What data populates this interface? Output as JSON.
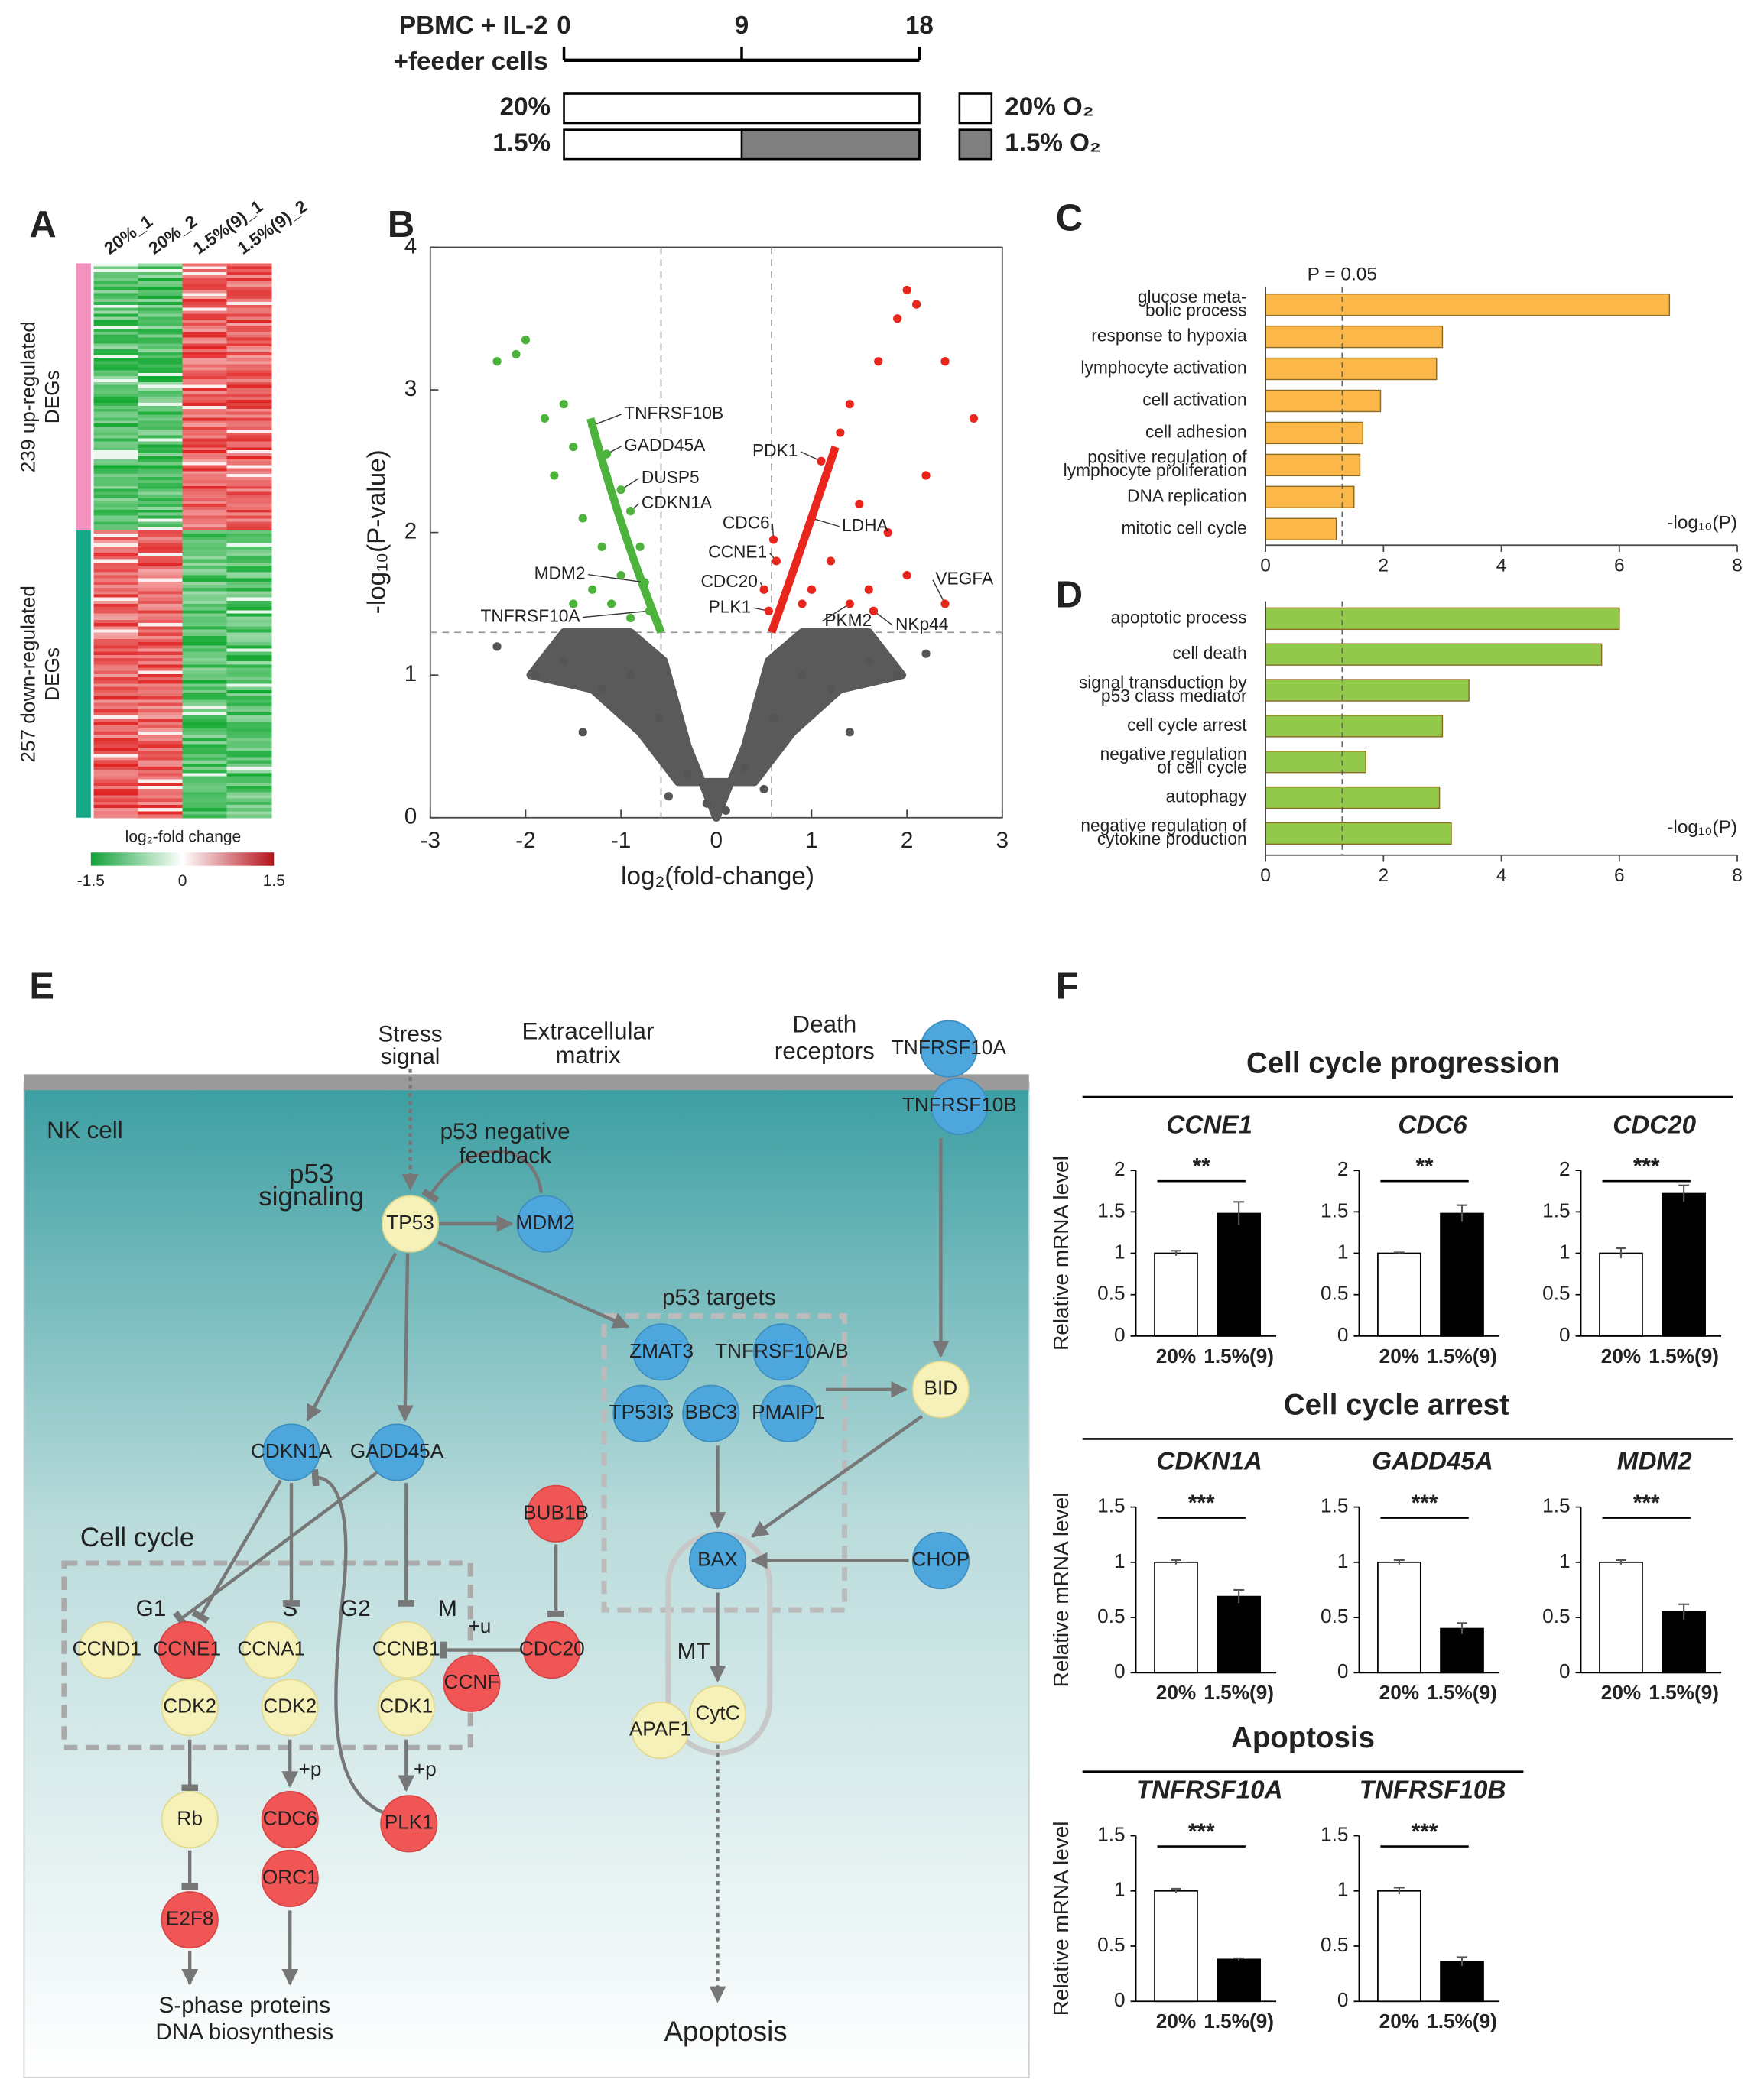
{
  "figure": {
    "panel_labels": [
      "A",
      "B",
      "C",
      "D",
      "E",
      "F"
    ],
    "timeline": {
      "title": [
        "PBMC + IL-2",
        "+feeder cells"
      ],
      "xlim": [
        0,
        18
      ],
      "xticks": [
        0,
        9,
        18
      ],
      "conditions": [
        {
          "label": "20%"
        },
        {
          "label": "1.5%",
          "hypoxia_from": 9
        }
      ],
      "legend": [
        "20%  O₂",
        "1.5%  O₂"
      ],
      "colors": [
        "#ffffff",
        "#808080"
      ]
    },
    "heatmap": {
      "columns": [
        "20%_1",
        "20%_2",
        "1.5%(9)_1",
        "1.5%(9)_2"
      ],
      "groups": [
        {
          "label": [
            "239 up-regulated",
            "DEGs"
          ],
          "color": "#f391bf"
        },
        {
          "label": [
            "257 down-regulated",
            "DEGs"
          ],
          "color": "#17a88a"
        }
      ],
      "colorbar": {
        "title": "log₂-fold change",
        "ticks": [
          -1.5,
          0,
          1.5
        ]
      }
    },
    "pathway": {
      "labels": {
        "stress": [
          "Stress",
          "signal"
        ],
        "ecm": [
          "Extracellular",
          "matrix"
        ],
        "death": [
          "Death",
          "receptors"
        ],
        "cell": "NK cell",
        "p53": [
          "p53",
          "signaling"
        ],
        "feedback": [
          "p53 negative",
          "feedback"
        ],
        "targets": "p53 targets",
        "cellcycle": "Cell cycle",
        "phases": [
          "G1",
          "S",
          "G2",
          "M"
        ],
        "modifications": [
          "+u",
          "+p",
          "+p"
        ],
        "mt": "MT",
        "sphase": [
          "S-phase proteins",
          "DNA biosynthesis"
        ],
        "apoptosis": "Apoptosis"
      },
      "nodes": [
        "TNFRSF10A",
        "TNFRSF10B",
        "TP53",
        "MDM2",
        "ZMAT3",
        "TNFRSF10A/B",
        "TP53I3",
        "BBC3",
        "PMAIP1",
        "BID",
        "CDKN1A",
        "GADD45A",
        "BUB1B",
        "BAX",
        "CHOP",
        "CCND1",
        "CCNE1",
        "CCNA1",
        "CCNB1",
        "CDC20",
        "CCNF",
        "CDK2",
        "CDK2",
        "CDK1",
        "APAF1",
        "CytC",
        "Rb",
        "CDC6",
        "PLK1",
        "ORC1",
        "E2F8"
      ]
    },
    "expression": {
      "groups": [
        "Cell cycle progression",
        "Cell cycle arrest",
        "Apoptosis"
      ]
    }
  },
  "chart_data": [
    {
      "type": "scatter",
      "xlabel": "log₂(fold-change)",
      "ylabel": "-log₁₀(P-value)",
      "xlim": [
        -3,
        3
      ],
      "ylim": [
        0,
        4
      ],
      "xticks": [
        -3,
        -2,
        -1,
        0,
        1,
        2,
        3
      ],
      "yticks": [
        0,
        1,
        2,
        3,
        4
      ],
      "thresholds": {
        "x": [
          -0.58,
          0.58
        ],
        "y": 1.3
      },
      "series": [
        {
          "color": "#4db33d",
          "x": [
            -2.0,
            -2.1,
            -1.6,
            -1.5,
            -1.8,
            -1.2,
            -1.4,
            -1.0,
            -1.5,
            -0.9,
            -1.7,
            -1.1,
            -2.3,
            -0.8,
            -1.3
          ],
          "y": [
            3.35,
            3.25,
            2.9,
            2.6,
            2.8,
            1.9,
            2.1,
            1.7,
            1.5,
            1.4,
            2.4,
            1.5,
            3.2,
            1.9,
            1.6
          ]
        },
        {
          "color": "#e8261e",
          "x": [
            2.0,
            2.1,
            1.9,
            2.4,
            2.7,
            1.7,
            1.3,
            1.5,
            1.8,
            1.2,
            2.0,
            0.9,
            1.6,
            2.2,
            1.0,
            1.4
          ],
          "y": [
            3.7,
            3.6,
            3.5,
            3.2,
            2.8,
            3.2,
            2.7,
            2.2,
            2.0,
            1.8,
            1.7,
            1.5,
            1.6,
            2.4,
            1.6,
            2.9
          ]
        },
        {
          "color": "#555555",
          "x": [
            -2.3,
            -1.9,
            -1.6,
            -1.2,
            -0.9,
            -0.6,
            -0.3,
            0.3,
            0.6,
            0.9,
            1.2,
            1.6,
            1.9,
            2.2,
            -1.4,
            1.4,
            -0.5,
            0.5,
            0.1,
            -0.1
          ],
          "y": [
            1.2,
            1.0,
            1.1,
            0.9,
            1.0,
            0.7,
            0.3,
            0.35,
            0.7,
            1.0,
            0.9,
            1.1,
            1.0,
            1.15,
            0.6,
            0.6,
            0.15,
            0.2,
            0.05,
            0.1
          ]
        }
      ],
      "annotations": [
        {
          "text": "TNFRSF10B",
          "x": -1.3,
          "y": 2.75
        },
        {
          "text": "GADD45A",
          "x": -1.15,
          "y": 2.55
        },
        {
          "text": "DUSP5",
          "x": -1.0,
          "y": 2.3
        },
        {
          "text": "CDKN1A",
          "x": -0.9,
          "y": 2.15
        },
        {
          "text": "MDM2",
          "x": -0.75,
          "y": 1.65
        },
        {
          "text": "TNFRSF10A",
          "x": -0.7,
          "y": 1.45
        },
        {
          "text": "PDK1",
          "x": 1.1,
          "y": 2.5
        },
        {
          "text": "CDC6",
          "x": 0.6,
          "y": 1.95
        },
        {
          "text": "CCNE1",
          "x": 0.63,
          "y": 1.8
        },
        {
          "text": "CDC20",
          "x": 0.5,
          "y": 1.6
        },
        {
          "text": "PLK1",
          "x": 0.55,
          "y": 1.45
        },
        {
          "text": "LDHA",
          "x": 1.0,
          "y": 2.1
        },
        {
          "text": "VEGFA",
          "x": 2.4,
          "y": 1.5
        },
        {
          "text": "PKM2",
          "x": 1.4,
          "y": 1.5
        },
        {
          "text": "NKp44",
          "x": 1.65,
          "y": 1.45
        }
      ]
    },
    {
      "type": "barh",
      "categories": [
        [
          "glucose meta-",
          "bolic process"
        ],
        [
          "response to hypoxia"
        ],
        [
          "lymphocyte activation"
        ],
        [
          "cell activation"
        ],
        [
          "cell adhesion"
        ],
        [
          "positive regulation of",
          "lymphocyte proliferation"
        ],
        [
          "DNA replication"
        ],
        [
          "mitotic cell cycle"
        ]
      ],
      "values": [
        6.85,
        3.0,
        2.9,
        1.95,
        1.65,
        1.6,
        1.5,
        1.2
      ],
      "label_colors": [
        "#222",
        "#222",
        "#f5a623",
        "#222",
        "#222",
        "#f5a623",
        "#222",
        "#222"
      ],
      "color": "#fbb848",
      "xlim": [
        0,
        8
      ],
      "xticks": [
        0,
        2,
        4,
        6,
        8
      ],
      "reference": {
        "value": 1.3,
        "label": "P = 0.05"
      },
      "xlabel": "-log₁₀(P)"
    },
    {
      "type": "barh",
      "categories": [
        [
          "apoptotic process"
        ],
        [
          "cell death"
        ],
        [
          "signal transduction by",
          "p53 class mediator"
        ],
        [
          "cell cycle arrest"
        ],
        [
          "negative regulation",
          "of cell cycle"
        ],
        [
          "autophagy"
        ],
        [
          "negative regulation of",
          "cytokine production"
        ]
      ],
      "values": [
        6.0,
        5.7,
        3.45,
        3.0,
        1.7,
        2.95,
        3.15
      ],
      "label_colors": [
        "#3cb043",
        "#222",
        "#222",
        "#3cb043",
        "#222",
        "#3cb043",
        "#222"
      ],
      "color": "#93c94a",
      "xlim": [
        0,
        8
      ],
      "xticks": [
        0,
        2,
        4,
        6,
        8
      ],
      "reference": {
        "value": 1.3
      },
      "xlabel": "-log₁₀(P)"
    },
    {
      "type": "bar",
      "title": "CCNE1",
      "ylabel": "Relative mRNA level",
      "categories": [
        "20%",
        "1.5%(9)"
      ],
      "values": [
        1.0,
        1.48
      ],
      "errors": [
        0.03,
        0.14
      ],
      "colors": [
        "#ffffff",
        "#000000"
      ],
      "ylim": [
        0,
        2
      ],
      "yticks": [
        0,
        0.5,
        1,
        1.5,
        2
      ],
      "significance": "**"
    },
    {
      "type": "bar",
      "title": "CDC6",
      "categories": [
        "20%",
        "1.5%(9)"
      ],
      "values": [
        1.0,
        1.48
      ],
      "errors": [
        0.01,
        0.1
      ],
      "colors": [
        "#ffffff",
        "#000000"
      ],
      "ylim": [
        0,
        2
      ],
      "yticks": [
        0,
        0.5,
        1,
        1.5,
        2
      ],
      "significance": "**"
    },
    {
      "type": "bar",
      "title": "CDC20",
      "categories": [
        "20%",
        "1.5%(9)"
      ],
      "values": [
        1.0,
        1.72
      ],
      "errors": [
        0.06,
        0.1
      ],
      "colors": [
        "#ffffff",
        "#000000"
      ],
      "ylim": [
        0,
        2
      ],
      "yticks": [
        0,
        0.5,
        1,
        1.5,
        2
      ],
      "significance": "***"
    },
    {
      "type": "bar",
      "title": "CDKN1A",
      "ylabel": "Relative mRNA level",
      "categories": [
        "20%",
        "1.5%(9)"
      ],
      "values": [
        1.0,
        0.69
      ],
      "errors": [
        0.02,
        0.06
      ],
      "colors": [
        "#ffffff",
        "#000000"
      ],
      "ylim": [
        0,
        1.5
      ],
      "yticks": [
        0,
        0.5,
        1,
        1.5
      ],
      "significance": "***"
    },
    {
      "type": "bar",
      "title": "GADD45A",
      "categories": [
        "20%",
        "1.5%(9)"
      ],
      "values": [
        1.0,
        0.4
      ],
      "errors": [
        0.02,
        0.05
      ],
      "colors": [
        "#ffffff",
        "#000000"
      ],
      "ylim": [
        0,
        1.5
      ],
      "yticks": [
        0,
        0.5,
        1,
        1.5
      ],
      "significance": "***"
    },
    {
      "type": "bar",
      "title": "MDM2",
      "categories": [
        "20%",
        "1.5%(9)"
      ],
      "values": [
        1.0,
        0.55
      ],
      "errors": [
        0.02,
        0.07
      ],
      "colors": [
        "#ffffff",
        "#000000"
      ],
      "ylim": [
        0,
        1.5
      ],
      "yticks": [
        0,
        0.5,
        1,
        1.5
      ],
      "significance": "***"
    },
    {
      "type": "bar",
      "title": "TNFRSF10A",
      "ylabel": "Relative mRNA level",
      "categories": [
        "20%",
        "1.5%(9)"
      ],
      "values": [
        1.0,
        0.38
      ],
      "errors": [
        0.02,
        0.01
      ],
      "colors": [
        "#ffffff",
        "#000000"
      ],
      "ylim": [
        0,
        1.5
      ],
      "yticks": [
        0,
        0.5,
        1,
        1.5
      ],
      "significance": "***"
    },
    {
      "type": "bar",
      "title": "TNFRSF10B",
      "categories": [
        "20%",
        "1.5%(9)"
      ],
      "values": [
        1.0,
        0.36
      ],
      "errors": [
        0.03,
        0.04
      ],
      "colors": [
        "#ffffff",
        "#000000"
      ],
      "ylim": [
        0,
        1.5
      ],
      "yticks": [
        0,
        0.5,
        1,
        1.5
      ],
      "significance": "***"
    }
  ]
}
